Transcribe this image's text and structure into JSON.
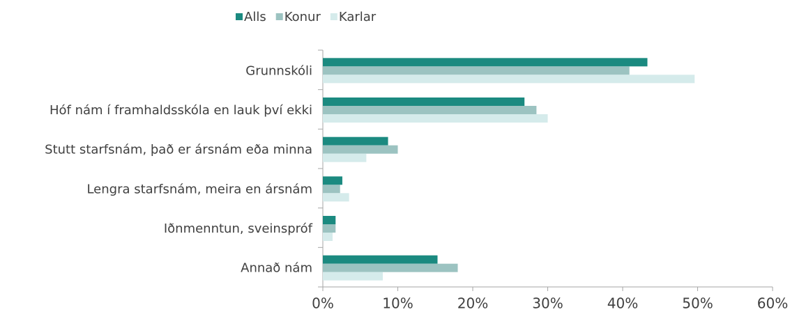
{
  "chart_data": {
    "type": "bar",
    "orientation": "horizontal",
    "categories": [
      "Grunnskóli",
      "Hóf nám í framhaldsskóla en lauk því ekki",
      "Stutt starfsnám, það er ársnám eða minna",
      "Lengra starfsnám, meira en ársnám",
      "Iðnmenntun, sveinspróf",
      "Annað nám"
    ],
    "series": [
      {
        "name": "Alls",
        "color": "#1b8a80",
        "values": [
          43.3,
          26.9,
          8.7,
          2.6,
          1.7,
          15.3
        ]
      },
      {
        "name": "Konur",
        "color": "#9cc3c1",
        "values": [
          40.9,
          28.5,
          10.0,
          2.3,
          1.7,
          18.0
        ]
      },
      {
        "name": "Karlar",
        "color": "#d5ebeb",
        "values": [
          49.6,
          30.0,
          5.8,
          3.5,
          1.3,
          8.0
        ]
      }
    ],
    "xlim": [
      0,
      60
    ],
    "xticks": [
      {
        "value": 0,
        "label": "0%"
      },
      {
        "value": 10,
        "label": "10%"
      },
      {
        "value": 20,
        "label": "20%"
      },
      {
        "value": 30,
        "label": "30%"
      },
      {
        "value": 40,
        "label": "40%"
      },
      {
        "value": 50,
        "label": "50%"
      },
      {
        "value": 60,
        "label": "60%"
      }
    ],
    "legend": "top",
    "grid": false
  }
}
